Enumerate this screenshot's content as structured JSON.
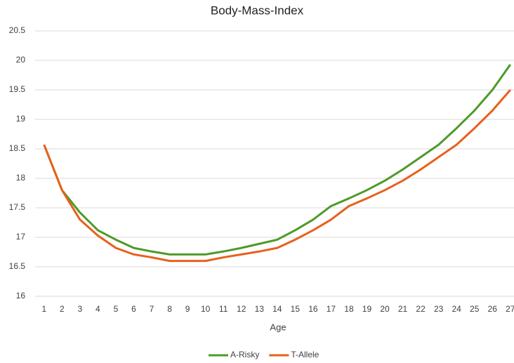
{
  "chart_data": {
    "type": "line",
    "title": "Body-Mass-Index",
    "x_label": "Age",
    "categories": [
      "1",
      "2",
      "3",
      "4",
      "5",
      "6",
      "7",
      "8",
      "9",
      "10",
      "11",
      "12",
      "13",
      "14",
      "15",
      "16",
      "17",
      "18",
      "19",
      "20",
      "21",
      "22",
      "23",
      "24",
      "25",
      "26",
      "27"
    ],
    "series": [
      {
        "name": "A-Risky",
        "color": "#4e9a28",
        "values": [
          18.57,
          17.8,
          17.42,
          17.12,
          16.96,
          16.82,
          16.76,
          16.71,
          16.71,
          16.71,
          16.76,
          16.82,
          16.89,
          16.96,
          17.12,
          17.3,
          17.53,
          17.66,
          17.8,
          17.96,
          18.15,
          18.36,
          18.57,
          18.85,
          19.15,
          19.5,
          19.93
        ]
      },
      {
        "name": "T-Allele",
        "color": "#e8601c",
        "values": [
          18.57,
          17.8,
          17.3,
          17.03,
          16.82,
          16.71,
          16.66,
          16.6,
          16.6,
          16.6,
          16.66,
          16.71,
          16.76,
          16.82,
          16.96,
          17.12,
          17.3,
          17.53,
          17.66,
          17.8,
          17.96,
          18.15,
          18.36,
          18.57,
          18.85,
          19.15,
          19.5
        ]
      }
    ],
    "ylim": [
      16,
      20.5
    ],
    "yticks": [
      16,
      16.5,
      17,
      17.5,
      18,
      18.5,
      19,
      19.5,
      20,
      20.5
    ],
    "grid": true,
    "legend": "bottom"
  }
}
